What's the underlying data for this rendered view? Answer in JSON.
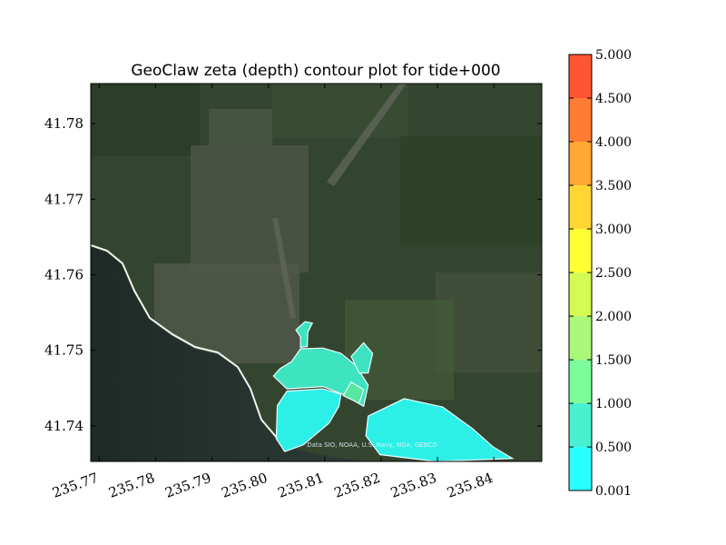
{
  "chart_data": {
    "type": "heatmap",
    "title": "GeoClaw zeta (depth) contour plot for tide+000",
    "xlabel": "",
    "ylabel": "",
    "xlim": [
      235.7685,
      235.8485
    ],
    "ylim": [
      41.7353,
      41.7853
    ],
    "x_ticks": [
      "235.77",
      "235.78",
      "235.79",
      "235.80",
      "235.81",
      "235.82",
      "235.83",
      "235.84"
    ],
    "x_tick_values": [
      235.77,
      235.78,
      235.79,
      235.8,
      235.81,
      235.82,
      235.83,
      235.84
    ],
    "y_ticks": [
      "41.74",
      "41.75",
      "41.76",
      "41.77",
      "41.78"
    ],
    "y_tick_values": [
      41.74,
      41.75,
      41.76,
      41.77,
      41.78
    ],
    "attribution": "Data SIO, NOAA, U.S. Navy, NGA, GEBCO",
    "background": "satellite imagery",
    "colorbar": {
      "position": "right",
      "levels": [
        "0.001",
        "0.500",
        "1.000",
        "1.500",
        "2.000",
        "2.500",
        "3.000",
        "3.500",
        "4.000",
        "4.500",
        "5.000"
      ],
      "level_values": [
        0.001,
        0.5,
        1.0,
        1.5,
        2.0,
        2.5,
        3.0,
        3.5,
        4.0,
        4.5,
        5.0
      ],
      "colors": [
        "#2affff",
        "#48f0d0",
        "#7dfc9a",
        "#a9f87a",
        "#d5fa53",
        "#ffff33",
        "#ffd633",
        "#ffa833",
        "#ff7d33",
        "#ff5533"
      ]
    },
    "inundated_regions": [
      {
        "depth_band": "0.001-0.500",
        "color": "#2cf0e8",
        "polygon": [
          [
            235.8033,
            41.7446
          ],
          [
            235.8097,
            41.7449
          ],
          [
            235.8129,
            41.7442
          ],
          [
            235.8125,
            41.7426
          ],
          [
            235.8108,
            41.7404
          ],
          [
            235.8062,
            41.7375
          ],
          [
            235.8029,
            41.7366
          ],
          [
            235.8014,
            41.7383
          ],
          [
            235.8016,
            41.7427
          ]
        ]
      },
      {
        "depth_band": "0.001-0.500",
        "color": "#2cf0e8",
        "polygon": [
          [
            235.8177,
            41.7413
          ],
          [
            235.8241,
            41.7436
          ],
          [
            235.8309,
            41.7425
          ],
          [
            235.8361,
            41.7397
          ],
          [
            235.8399,
            41.7372
          ],
          [
            235.8433,
            41.7357
          ],
          [
            235.8297,
            41.7353
          ],
          [
            235.8198,
            41.7362
          ],
          [
            235.8173,
            41.7387
          ]
        ]
      },
      {
        "depth_band": "0.500-1.000",
        "color": "#3ee3c0",
        "polygon": [
          [
            235.8009,
            41.7466
          ],
          [
            235.8033,
            41.7449
          ],
          [
            235.8097,
            41.7452
          ],
          [
            235.8132,
            41.7442
          ],
          [
            235.8169,
            41.7426
          ],
          [
            235.8177,
            41.7454
          ],
          [
            235.8155,
            41.748
          ],
          [
            235.8129,
            41.7496
          ],
          [
            235.8097,
            41.7503
          ],
          [
            235.8057,
            41.7502
          ],
          [
            235.8041,
            41.7485
          ],
          [
            235.8021,
            41.7476
          ]
        ]
      },
      {
        "depth_band": "0.500-1.000",
        "color": "#3ee3c0",
        "polygon": [
          [
            235.8057,
            41.7504
          ],
          [
            235.8057,
            41.7518
          ],
          [
            235.8049,
            41.7527
          ],
          [
            235.8065,
            41.7538
          ],
          [
            235.8078,
            41.7536
          ],
          [
            235.807,
            41.7524
          ],
          [
            235.8069,
            41.7505
          ]
        ]
      },
      {
        "depth_band": "0.500-1.000",
        "color": "#3ee3c0",
        "polygon": [
          [
            235.8147,
            41.7492
          ],
          [
            235.8169,
            41.751
          ],
          [
            235.8185,
            41.7496
          ],
          [
            235.8177,
            41.747
          ],
          [
            235.8161,
            41.747
          ]
        ]
      },
      {
        "depth_band": "1.000-1.500",
        "color": "#58e6a0",
        "polygon": [
          [
            235.8133,
            41.744
          ],
          [
            235.8161,
            41.743
          ],
          [
            235.8169,
            41.7448
          ],
          [
            235.8147,
            41.7458
          ]
        ]
      }
    ]
  }
}
